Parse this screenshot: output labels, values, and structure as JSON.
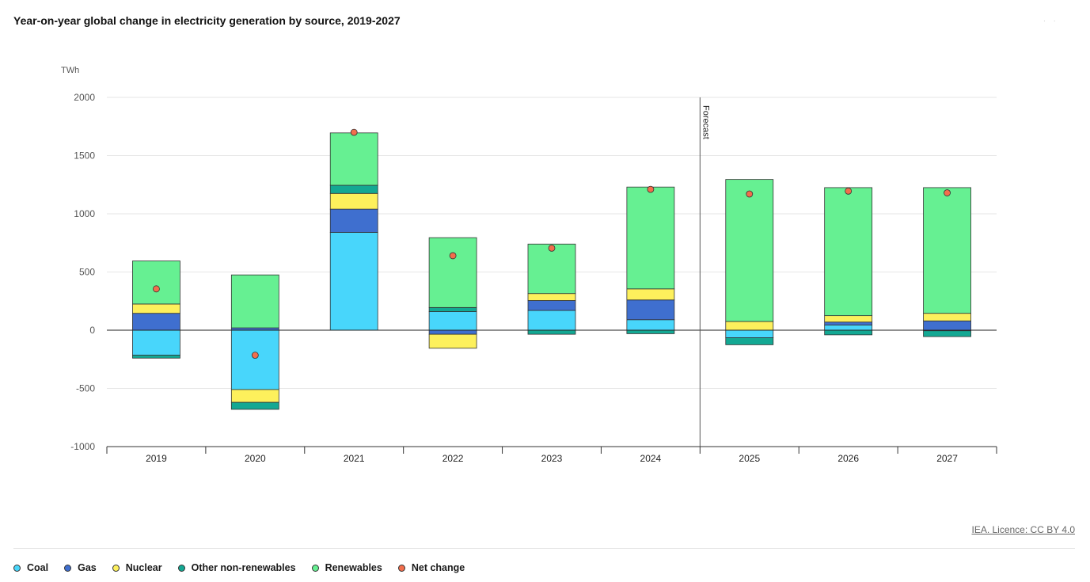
{
  "page": {
    "credit": "IEA. Licence: CC BY 4.0"
  },
  "chart_data": {
    "type": "bar",
    "stacked": true,
    "title": "Year-on-year global change in electricity generation by source, 2019-2027",
    "ylabel": "TWh",
    "xlabel": "",
    "ylim": [
      -1000,
      2000
    ],
    "yticks": [
      2000,
      1500,
      1000,
      500,
      0,
      -500,
      -1000
    ],
    "grid": true,
    "legend_position": "bottom",
    "categories": [
      "2019",
      "2020",
      "2021",
      "2022",
      "2023",
      "2024",
      "2025",
      "2026",
      "2027"
    ],
    "annotation": {
      "label": "Forecast",
      "between": [
        "2024",
        "2025"
      ]
    },
    "series": [
      {
        "name": "Coal",
        "color": "#48D6FB",
        "values": [
          -215,
          -510,
          840,
          160,
          170,
          90,
          -65,
          45,
          -5
        ]
      },
      {
        "name": "Gas",
        "color": "#3F6FCF",
        "values": [
          145,
          20,
          200,
          -35,
          85,
          170,
          0,
          25,
          80
        ]
      },
      {
        "name": "Nuclear",
        "color": "#FDF05C",
        "values": [
          80,
          -110,
          135,
          -120,
          60,
          95,
          75,
          55,
          65
        ]
      },
      {
        "name": "Other non-renewables",
        "color": "#13A893",
        "values": [
          -25,
          -60,
          70,
          35,
          -35,
          -30,
          -60,
          -40,
          -50
        ]
      },
      {
        "name": "Renewables",
        "color": "#66F092",
        "values": [
          370,
          455,
          450,
          600,
          425,
          875,
          1220,
          1100,
          1080
        ]
      }
    ],
    "net_change": {
      "name": "Net change",
      "color": "#F26E4C",
      "values": [
        355,
        -215,
        1700,
        640,
        705,
        1210,
        1170,
        1195,
        1180
      ]
    }
  }
}
